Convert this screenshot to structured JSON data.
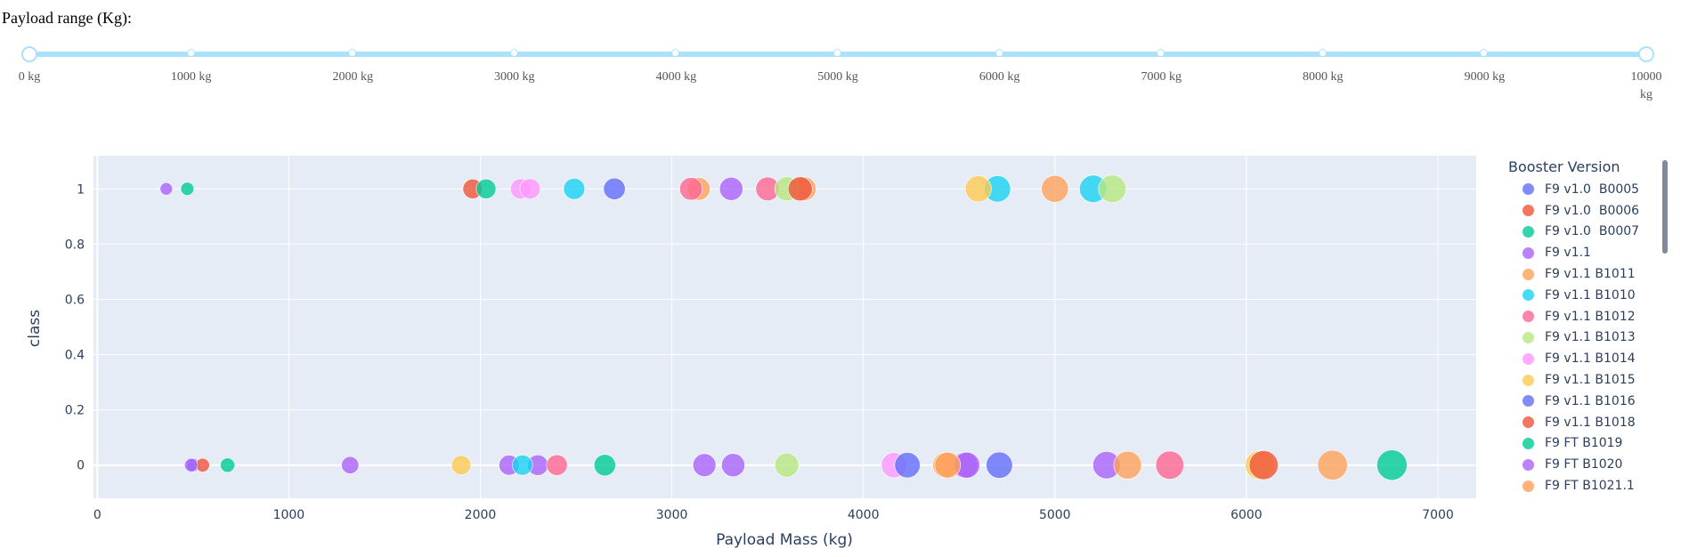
{
  "slider": {
    "title": "Payload range (Kg):",
    "min": 0,
    "max": 10000,
    "value": [
      0,
      10000
    ],
    "marks": [
      "0 kg",
      "1000 kg",
      "2000 kg",
      "3000 kg",
      "4000 kg",
      "5000 kg",
      "6000 kg",
      "7000 kg",
      "8000 kg",
      "9000 kg",
      "10000 kg"
    ]
  },
  "chart_data": {
    "type": "scatter",
    "xlabel": "Payload Mass (kg)",
    "ylabel": "class",
    "xlim": [
      -20,
      7200
    ],
    "ylim": [
      -0.12,
      1.12
    ],
    "xticks": [
      0,
      1000,
      2000,
      3000,
      4000,
      5000,
      6000,
      7000
    ],
    "yticks": [
      0,
      0.2,
      0.4,
      0.6,
      0.8,
      1
    ],
    "ytick_labels": [
      "0",
      "0.2",
      "0.4",
      "0.6",
      "0.8",
      "1"
    ],
    "grid": true,
    "legend_title": "Booster Version",
    "legend_position": "right",
    "series": [
      {
        "name": "F9 v1.0  B0005",
        "color": "#636efa",
        "points": [
          [
            500,
            0
          ]
        ]
      },
      {
        "name": "F9 v1.0  B0006",
        "color": "#ef553b",
        "points": [
          [
            550,
            0
          ],
          [
            1960,
            1
          ]
        ]
      },
      {
        "name": "F9 v1.0  B0007",
        "color": "#00cc96",
        "points": [
          [
            680,
            0
          ],
          [
            2030,
            1
          ]
        ]
      },
      {
        "name": "F9 v1.1",
        "color": "#ab63fa",
        "points": [
          [
            360,
            1
          ],
          [
            490,
            0
          ],
          [
            1320,
            0
          ],
          [
            2150,
            0
          ],
          [
            2300,
            0
          ],
          [
            3170,
            0
          ],
          [
            3320,
            0
          ],
          [
            3310,
            1
          ],
          [
            4530,
            0
          ],
          [
            5270,
            0
          ]
        ]
      },
      {
        "name": "F9 v1.1 B1011",
        "color": "#ffa15a",
        "points": [
          [
            3140,
            1
          ],
          [
            3690,
            1
          ],
          [
            4430,
            0
          ],
          [
            5000,
            1
          ],
          [
            5380,
            0
          ],
          [
            6450,
            0
          ]
        ]
      },
      {
        "name": "F9 v1.1 B1010",
        "color": "#19d3f3",
        "points": [
          [
            2220,
            0
          ],
          [
            2490,
            1
          ],
          [
            4700,
            1
          ],
          [
            5200,
            1
          ]
        ]
      },
      {
        "name": "F9 v1.1 B1012",
        "color": "#ff6692",
        "points": [
          [
            2400,
            0
          ],
          [
            3100,
            1
          ],
          [
            3500,
            1
          ],
          [
            5600,
            0
          ]
        ]
      },
      {
        "name": "F9 v1.1 B1013",
        "color": "#b6e880",
        "points": [
          [
            3600,
            0
          ],
          [
            3600,
            1
          ],
          [
            5300,
            1
          ]
        ]
      },
      {
        "name": "F9 v1.1 B1014",
        "color": "#ff97ff",
        "points": [
          [
            2210,
            1
          ],
          [
            2260,
            1
          ],
          [
            4160,
            0
          ]
        ]
      },
      {
        "name": "F9 v1.1 B1015",
        "color": "#fecb52",
        "points": [
          [
            1900,
            0
          ],
          [
            4600,
            1
          ],
          [
            6070,
            0
          ]
        ]
      },
      {
        "name": "F9 v1.1 B1016",
        "color": "#636efa",
        "points": [
          [
            2700,
            1
          ],
          [
            4230,
            0
          ],
          [
            4710,
            0
          ]
        ]
      },
      {
        "name": "F9 v1.1 B1018",
        "color": "#ef553b",
        "points": [
          [
            3670,
            1
          ],
          [
            6090,
            0
          ]
        ]
      },
      {
        "name": "F9 FT B1019",
        "color": "#00cc96",
        "points": [
          [
            470,
            1
          ],
          [
            2650,
            0
          ],
          [
            6760,
            0
          ]
        ]
      },
      {
        "name": "F9 FT B1020",
        "color": "#ab63fa",
        "points": [
          [
            4540,
            0
          ]
        ]
      },
      {
        "name": "F9 FT B1021.1",
        "color": "#ffa15a",
        "points": [
          [
            4440,
            0
          ]
        ]
      }
    ]
  }
}
